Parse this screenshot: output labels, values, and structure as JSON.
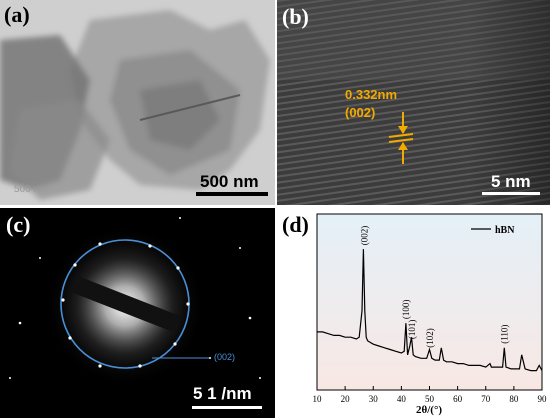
{
  "figure": {
    "panels": [
      {
        "label": "(a)",
        "scalebar": "500 nm",
        "faint_scalebar": "500 nm"
      },
      {
        "label": "(b)",
        "scalebar": "5 nm",
        "d_spacing": "0.332nm",
        "plane": "(002)"
      },
      {
        "label": "(c)",
        "scalebar": "5 1 /nm",
        "ring_label": "(002)"
      },
      {
        "label": "(d)"
      }
    ]
  },
  "colors": {
    "annotation_orange": "#f2a900",
    "saed_ring_blue": "#4a8fd6",
    "xrd_line": "#000000"
  },
  "chart_data": {
    "type": "line",
    "title": "",
    "xlabel": "2θ/(°)",
    "ylabel": "",
    "xlim": [
      10,
      90
    ],
    "xticks": [
      10,
      20,
      30,
      40,
      50,
      60,
      70,
      80,
      90
    ],
    "legend": {
      "position": "top-right",
      "entries": [
        "hBN"
      ]
    },
    "series": [
      {
        "name": "hBN",
        "x": [
          10,
          12,
          14,
          16,
          18,
          20,
          22,
          24,
          25,
          26,
          26.5,
          27,
          27.5,
          28,
          29,
          30,
          32,
          34,
          36,
          38,
          40,
          41,
          41.6,
          42.2,
          43,
          43.6,
          44.2,
          45,
          47,
          49,
          50,
          50.8,
          52,
          53.5,
          54.2,
          55,
          56,
          58,
          60,
          62,
          64,
          66,
          68,
          70,
          71.5,
          72,
          73,
          75,
          76,
          76.6,
          77.2,
          79,
          81,
          82,
          82.8,
          84,
          86,
          88,
          89,
          90
        ],
        "y": [
          0.33,
          0.33,
          0.32,
          0.31,
          0.31,
          0.3,
          0.3,
          0.29,
          0.3,
          0.45,
          0.8,
          0.45,
          0.3,
          0.28,
          0.27,
          0.26,
          0.25,
          0.24,
          0.23,
          0.22,
          0.21,
          0.22,
          0.38,
          0.2,
          0.25,
          0.3,
          0.2,
          0.19,
          0.18,
          0.18,
          0.23,
          0.18,
          0.17,
          0.17,
          0.24,
          0.17,
          0.16,
          0.16,
          0.15,
          0.15,
          0.14,
          0.14,
          0.14,
          0.13,
          0.15,
          0.13,
          0.13,
          0.13,
          0.13,
          0.24,
          0.13,
          0.12,
          0.12,
          0.12,
          0.2,
          0.12,
          0.11,
          0.11,
          0.14,
          0.11
        ]
      }
    ],
    "peak_labels": [
      {
        "label": "(002)",
        "x": 26.8
      },
      {
        "label": "(100)",
        "x": 41.6
      },
      {
        "label": "(101)",
        "x": 43.8
      },
      {
        "label": "(102)",
        "x": 50.2
      },
      {
        "label": "(110)",
        "x": 76.6
      }
    ]
  }
}
